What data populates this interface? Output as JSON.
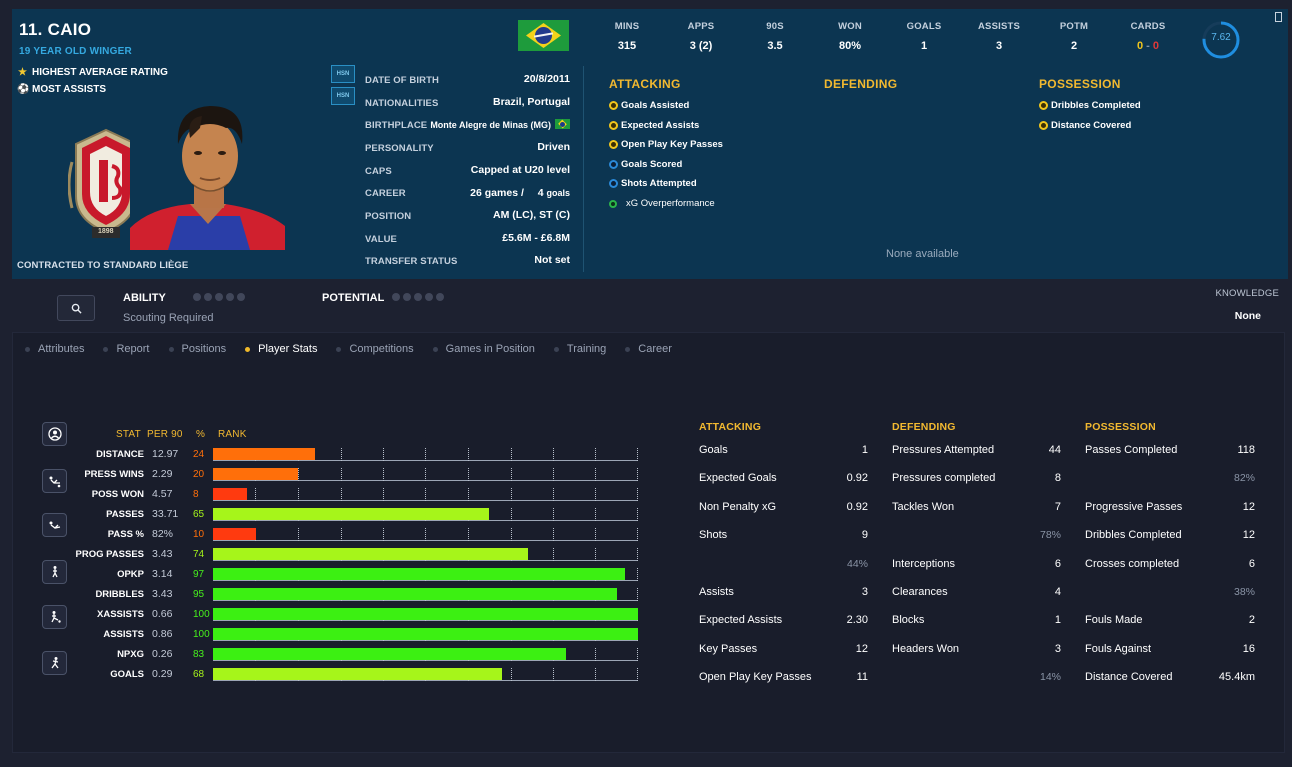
{
  "player": {
    "name": "11. CAIO",
    "subtitle": "19 YEAR OLD WINGER",
    "awards": [
      "HIGHEST AVERAGE RATING",
      "MOST ASSISTS"
    ],
    "contract": "CONTRACTED TO STANDARD LIÈGE",
    "crest_year": "1898",
    "hsn_badges": [
      "HSN",
      "HSN"
    ]
  },
  "info": [
    {
      "label": "DATE OF BIRTH",
      "value": "20/8/2011"
    },
    {
      "label": "NATIONALITIES",
      "value": "Brazil, Portugal"
    },
    {
      "label": "BIRTHPLACE",
      "value": "Monte Alegre de Minas (MG)"
    },
    {
      "label": "PERSONALITY",
      "value": "Driven"
    },
    {
      "label": "CAPS",
      "value": "Capped at U20 level"
    },
    {
      "label": "CAREER",
      "games": "26 games /",
      "goals_n": "4",
      "goals_l": "goals"
    },
    {
      "label": "POSITION",
      "value": "AM (LC), ST (C)"
    },
    {
      "label": "VALUE",
      "value": "£5.6M - £6.8M"
    },
    {
      "label": "TRANSFER STATUS",
      "value": "Not set"
    }
  ],
  "season": {
    "heads": [
      "MINS",
      "APPS",
      "90S",
      "WON",
      "GOALS",
      "ASSISTS",
      "POTM",
      "CARDS"
    ],
    "values": [
      "315",
      "3 (2)",
      "3.5",
      "80%",
      "1",
      "3",
      "2"
    ],
    "cards_yellow": "0",
    "cards_red": "0",
    "rating": "7.62",
    "rating_fraction": 0.76
  },
  "summary": {
    "attacking_title": "ATTACKING",
    "defending_title": "DEFENDING",
    "possession_title": "POSSESSION",
    "attacking": [
      {
        "label": "Goals Assisted",
        "kind": "y"
      },
      {
        "label": "Expected Assists",
        "kind": "y"
      },
      {
        "label": "Open Play Key Passes",
        "kind": "y"
      },
      {
        "label": "Goals Scored",
        "kind": "b"
      },
      {
        "label": "Shots Attempted",
        "kind": "b"
      },
      {
        "label": "xG Overperformance",
        "kind": "g"
      }
    ],
    "possession": [
      {
        "label": "Dribbles Completed",
        "kind": "y"
      },
      {
        "label": "Distance Covered",
        "kind": "y"
      }
    ],
    "none_available": "None available"
  },
  "ability": {
    "ability_label": "ABILITY",
    "scouting": "Scouting Required",
    "potential_label": "POTENTIAL",
    "knowledge_label": "KNOWLEDGE",
    "knowledge_value": "None"
  },
  "tabs": [
    "Attributes",
    "Report",
    "Positions",
    "Player Stats",
    "Competitions",
    "Games in Position",
    "Training",
    "Career"
  ],
  "active_tab": "Player Stats",
  "chart_data": {
    "type": "bar",
    "headers": {
      "stat": "STAT",
      "per90": "PER 90",
      "pct": "%",
      "rank": "RANK"
    },
    "categories": [
      "DISTANCE",
      "PRESS WINS",
      "POSS WON",
      "PASSES",
      "PASS %",
      "PROG PASSES",
      "OPKP",
      "DRIBBLES",
      "XASSISTS",
      "ASSISTS",
      "NPXG",
      "GOALS"
    ],
    "per90": [
      "12.97",
      "2.29",
      "4.57",
      "33.71",
      "82%",
      "3.43",
      "3.14",
      "3.43",
      "0.66",
      "0.86",
      "0.26",
      "0.29"
    ],
    "values": [
      24,
      20,
      8,
      65,
      10,
      74,
      97,
      95,
      100,
      100,
      83,
      68
    ],
    "ylim": [
      0,
      100
    ],
    "colors": {
      "low": "#ff6f0a",
      "veryLow": "#ff3a0f",
      "mid": "#a6f51a",
      "high": "#3cf012"
    }
  },
  "detail": {
    "attacking_title": "ATTACKING",
    "defending_title": "DEFENDING",
    "possession_title": "POSSESSION",
    "attacking": [
      {
        "label": "Goals",
        "value": "1"
      },
      {
        "label": "Expected Goals",
        "value": "0.92"
      },
      {
        "label": "Non Penalty xG",
        "value": "0.92"
      },
      {
        "label": "Shots",
        "value": "9"
      },
      {
        "label": "",
        "pct": "44%"
      },
      {
        "label": "Assists",
        "value": "3"
      },
      {
        "label": "Expected Assists",
        "value": "2.30"
      },
      {
        "label": "Key Passes",
        "value": "12"
      },
      {
        "label": "Open Play Key Passes",
        "value": "11"
      }
    ],
    "defending": [
      {
        "label": "Pressures Attempted",
        "value": "44"
      },
      {
        "label": "Pressures completed",
        "value": "8"
      },
      {
        "label": "Tackles Won",
        "value": "7"
      },
      {
        "label": "",
        "pct": "78%"
      },
      {
        "label": "Interceptions",
        "value": "6"
      },
      {
        "label": "Clearances",
        "value": "4"
      },
      {
        "label": "Blocks",
        "value": "1"
      },
      {
        "label": "Headers Won",
        "value": "3"
      },
      {
        "label": "",
        "pct": "14%"
      }
    ],
    "possession": [
      {
        "label": "Passes Completed",
        "value": "118"
      },
      {
        "label": "",
        "pct": "82%"
      },
      {
        "label": "Progressive Passes",
        "value": "12"
      },
      {
        "label": "Dribbles Completed",
        "value": "12"
      },
      {
        "label": "Crosses completed",
        "value": "6"
      },
      {
        "label": "",
        "pct": "38%"
      },
      {
        "label": "Fouls Made",
        "value": "2"
      },
      {
        "label": "Fouls Against",
        "value": "16"
      },
      {
        "label": "Distance Covered",
        "value": "45.4km"
      }
    ]
  }
}
